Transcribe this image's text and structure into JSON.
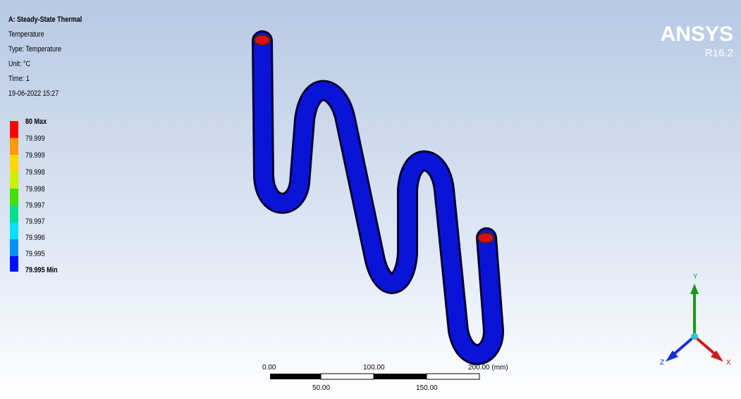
{
  "header": {
    "analysis": "A: Steady-State Thermal",
    "result": "Temperature",
    "type": "Type: Temperature",
    "unit": "Unit: °C",
    "time": "Time: 1",
    "timestamp": "19-06-2022 15:27"
  },
  "legend": [
    "80 Max",
    "79.999",
    "79.999",
    "79.998",
    "79.998",
    "79.997",
    "79.997",
    "79.996",
    "79.995",
    "79.995 Min"
  ],
  "brand": {
    "name": "ANSYS",
    "version": "R16.2"
  },
  "scale_bar": {
    "top": [
      "0.00",
      "100.00",
      "200.00 (mm)"
    ],
    "bottom": [
      "50.00",
      "150.00"
    ]
  },
  "triad": {
    "x": "X",
    "y": "Y",
    "z": "Z"
  }
}
